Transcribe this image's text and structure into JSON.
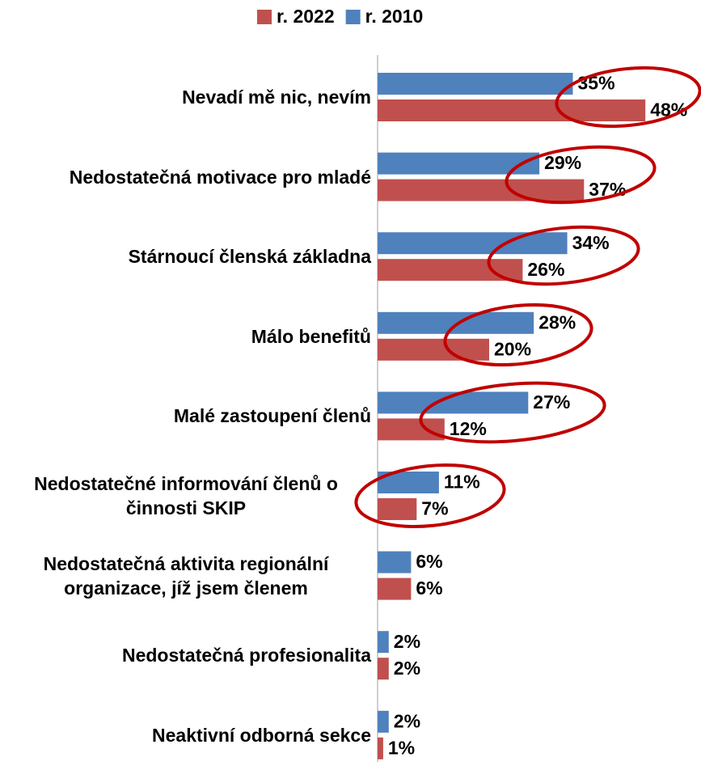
{
  "chart_data": {
    "type": "bar",
    "orientation": "horizontal",
    "categories": [
      "Nevadí mě nic, nevím",
      "Nedostatečná motivace pro mladé",
      "Stárnoucí členská základna",
      "Málo benefitů",
      "Malé zastoupení členů",
      "Nedostatečné informování členů o činnosti SKIP",
      "Nedostatečná aktivita regionální organizace, jíž jsem členem",
      "Nedostatečná profesionalita",
      "Neaktivní odborná sekce"
    ],
    "series": [
      {
        "name": "r. 2022",
        "color": "#c0504d",
        "values": [
          48,
          37,
          26,
          20,
          12,
          7,
          6,
          2,
          1
        ],
        "value_labels": [
          "48%",
          "37%",
          "26%",
          "20%",
          "12%",
          "7%",
          "6%",
          "2%",
          "1%"
        ]
      },
      {
        "name": "r. 2010",
        "color": "#4f81bd",
        "values": [
          35,
          29,
          34,
          28,
          27,
          11,
          6,
          2,
          2
        ],
        "value_labels": [
          "35%",
          "29%",
          "34%",
          "28%",
          "27%",
          "11%",
          "6%",
          "2%",
          "2%"
        ]
      }
    ],
    "legend": "top"
  }
}
